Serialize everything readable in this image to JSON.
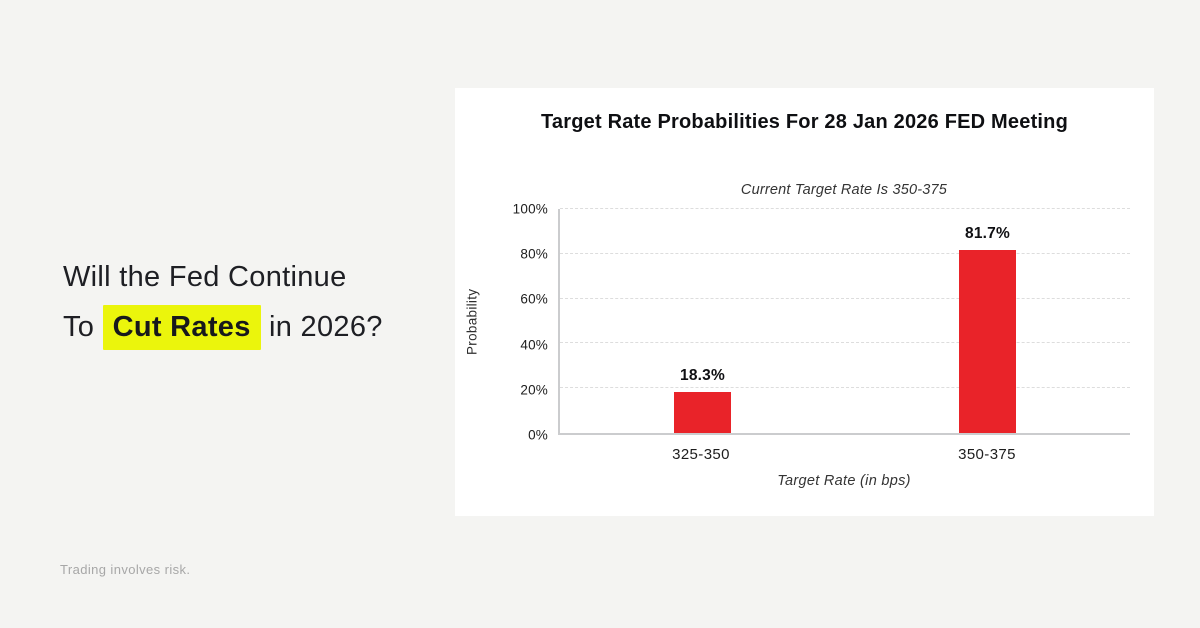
{
  "page": {
    "background_color": "#f4f4f2",
    "headline": {
      "line1": "Will the Fed Continue",
      "line2_prefix": "To ",
      "line2_highlight": "Cut Rates",
      "line2_suffix": " in 2026?",
      "highlight_color": "#ebf50c"
    },
    "disclaimer": "Trading involves risk."
  },
  "chart_data": {
    "type": "bar",
    "title": "Target Rate Probabilities For 28 Jan 2026 FED Meeting",
    "subtitle": "Current Target Rate Is 350-375",
    "categories": [
      "325-350",
      "350-375"
    ],
    "values": [
      18.3,
      81.7
    ],
    "value_labels": [
      "18.3%",
      "81.7%"
    ],
    "xlabel": "Target Rate (in bps)",
    "ylabel": "Probability",
    "ylim": [
      0,
      100
    ],
    "yticks": [
      0,
      20,
      40,
      60,
      80,
      100
    ],
    "ytick_labels": [
      "0%",
      "20%",
      "40%",
      "60%",
      "80%",
      "100%"
    ],
    "bar_color": "#e92329",
    "grid": "horizontal-dashed",
    "legend": "none"
  }
}
